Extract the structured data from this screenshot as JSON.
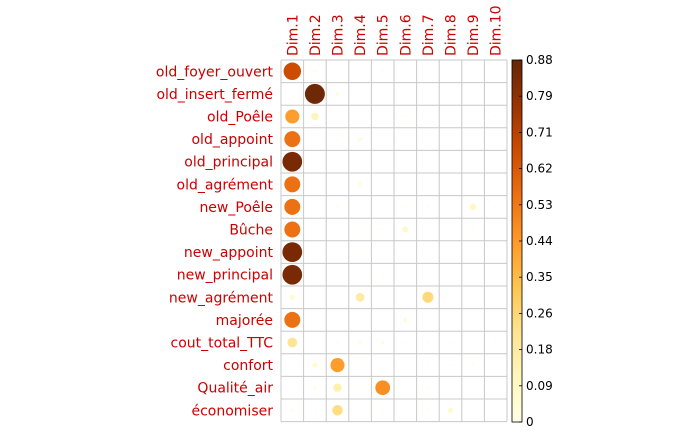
{
  "chart_data": {
    "type": "heatmap",
    "style": "corrplot-circle",
    "x_labels": [
      "Dim.1",
      "Dim.2",
      "Dim.3",
      "Dim.4",
      "Dim.5",
      "Dim.6",
      "Dim.7",
      "Dim.8",
      "Dim.9",
      "Dim.10"
    ],
    "y_labels": [
      "old_foyer_ouvert",
      "old_insert_fermé",
      "old_Poêle",
      "old_appoint",
      "old_principal",
      "old_agrément",
      "new_Poêle",
      "Bûche",
      "new_appoint",
      "new_principal",
      "new_agrément",
      "majorée",
      "cout_total_TTC",
      "confort",
      "Qualité_air",
      "économiser"
    ],
    "values": [
      [
        0.66,
        0.02,
        0.0,
        0.0,
        0.01,
        0.0,
        0.0,
        0.0,
        0.0,
        0.0
      ],
      [
        0.0,
        0.86,
        0.03,
        0.0,
        0.0,
        0.0,
        0.0,
        0.0,
        0.0,
        0.0
      ],
      [
        0.43,
        0.12,
        0.0,
        0.0,
        0.0,
        0.01,
        0.0,
        0.0,
        0.0,
        0.01
      ],
      [
        0.55,
        0.0,
        0.01,
        0.03,
        0.0,
        0.0,
        0.0,
        0.0,
        0.0,
        0.0
      ],
      [
        0.84,
        0.0,
        0.0,
        0.0,
        0.0,
        0.0,
        0.0,
        0.0,
        0.0,
        0.0
      ],
      [
        0.55,
        0.01,
        0.01,
        0.03,
        0.0,
        0.0,
        0.0,
        0.0,
        0.0,
        0.01
      ],
      [
        0.55,
        0.0,
        0.01,
        0.0,
        0.0,
        0.01,
        0.01,
        0.0,
        0.09,
        0.01
      ],
      [
        0.55,
        0.0,
        0.0,
        0.01,
        0.01,
        0.08,
        0.0,
        0.0,
        0.01,
        0.0
      ],
      [
        0.84,
        0.0,
        0.0,
        0.01,
        0.0,
        0.0,
        0.0,
        0.0,
        0.0,
        0.0
      ],
      [
        0.84,
        0.0,
        0.0,
        0.0,
        0.01,
        0.0,
        0.0,
        0.0,
        0.0,
        0.0
      ],
      [
        0.06,
        0.0,
        0.0,
        0.17,
        0.0,
        0.0,
        0.26,
        0.0,
        0.0,
        0.0
      ],
      [
        0.55,
        0.01,
        0.0,
        0.01,
        0.0,
        0.04,
        0.0,
        0.01,
        0.0,
        0.0
      ],
      [
        0.21,
        0.0,
        0.01,
        0.02,
        0.03,
        0.01,
        0.01,
        0.01,
        0.0,
        0.01
      ],
      [
        0.0,
        0.06,
        0.43,
        0.01,
        0.0,
        0.0,
        0.01,
        0.01,
        0.01,
        0.0
      ],
      [
        0.0,
        0.02,
        0.15,
        0.01,
        0.47,
        0.0,
        0.01,
        0.0,
        0.0,
        0.0
      ],
      [
        0.02,
        0.01,
        0.24,
        0.0,
        0.01,
        0.01,
        0.01,
        0.06,
        0.0,
        0.0
      ]
    ],
    "colorbar": {
      "min": 0,
      "max": 0.88,
      "ticks": [
        "0.88",
        "0.79",
        "0.71",
        "0.62",
        "0.53",
        "0.44",
        "0.35",
        "0.26",
        "0.18",
        "0.09",
        "0"
      ]
    },
    "colors": {
      "label": "#cc0000",
      "grid": "#c8c8c8",
      "scale": [
        "#ffffe5",
        "#fff7bc",
        "#fee391",
        "#fec44f",
        "#fe9929",
        "#ec7014",
        "#cc4c02",
        "#993404",
        "#662506"
      ]
    }
  }
}
